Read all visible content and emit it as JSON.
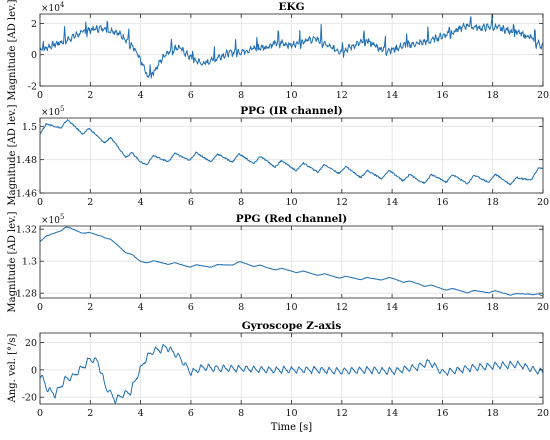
{
  "chart_data": [
    {
      "type": "line",
      "title": "EKG",
      "ylabel": "Magnitude [AD lev.]",
      "xlabel": "",
      "exponent_label": "×10^4",
      "xlim": [
        0,
        20
      ],
      "ylim": [
        -2,
        2.6
      ],
      "yticks": [
        -2,
        0,
        2
      ],
      "ytick_labels": [
        "-2",
        "0",
        "2"
      ],
      "xticks": [
        0,
        2,
        4,
        6,
        8,
        10,
        12,
        14,
        16,
        18,
        20
      ],
      "xtick_labels": [
        "0",
        "2",
        "4",
        "6",
        "8",
        "10",
        "12",
        "14",
        "16",
        "18",
        "20"
      ],
      "grid": true,
      "series": [
        {
          "color": "#1f6fb4",
          "x": [
            0,
            0.5,
            1,
            1.5,
            2,
            2.5,
            3,
            3.5,
            3.8,
            4.1,
            4.3,
            4.6,
            5,
            5.5,
            6,
            6.5,
            7,
            7.5,
            8,
            8.5,
            9,
            9.5,
            10,
            10.5,
            11,
            11.5,
            12,
            12.5,
            13,
            13.5,
            14,
            14.5,
            15,
            15.5,
            16,
            16.5,
            17,
            17.5,
            18,
            18.5,
            19,
            19.5,
            20
          ],
          "y": [
            0.3,
            0.6,
            0.9,
            1.3,
            1.6,
            1.7,
            1.5,
            0.9,
            0.2,
            -0.7,
            -1.5,
            -0.9,
            0.1,
            0.5,
            -0.2,
            -0.6,
            -0.2,
            0.1,
            0.2,
            0.4,
            0.5,
            0.8,
            0.6,
            0.9,
            1.0,
            0.5,
            0.2,
            0.6,
            0.9,
            0.4,
            0.3,
            0.6,
            0.7,
            0.9,
            1.2,
            1.5,
            1.9,
            1.7,
            1.8,
            1.6,
            1.4,
            1.1,
            0.5
          ],
          "peak_amplitude": 0.9,
          "beat_interval_s": 0.85
        }
      ]
    },
    {
      "type": "line",
      "title": "PPG (IR channel)",
      "ylabel": "Magnitude [AD lev.]",
      "xlabel": "",
      "exponent_label": "×10^5",
      "xlim": [
        0,
        20
      ],
      "ylim": [
        1.46,
        1.505
      ],
      "yticks": [
        1.46,
        1.48,
        1.5
      ],
      "ytick_labels": [
        "1.46",
        "1.48",
        "1.5"
      ],
      "xticks": [
        0,
        2,
        4,
        6,
        8,
        10,
        12,
        14,
        16,
        18,
        20
      ],
      "xtick_labels": [
        "0",
        "2",
        "4",
        "6",
        "8",
        "10",
        "12",
        "14",
        "16",
        "18",
        "20"
      ],
      "grid": true,
      "series": [
        {
          "color": "#1f6fb4",
          "x": [
            0,
            0.5,
            1,
            1.5,
            2,
            2.5,
            3,
            3.5,
            4,
            5,
            6,
            7,
            8,
            9,
            10,
            11,
            12,
            13,
            14,
            15,
            16,
            17,
            18,
            19,
            19.5,
            20
          ],
          "y": [
            1.498,
            1.5,
            1.502,
            1.499,
            1.496,
            1.493,
            1.489,
            1.483,
            1.479,
            1.481,
            1.482,
            1.481,
            1.481,
            1.479,
            1.476,
            1.475,
            1.474,
            1.471,
            1.471,
            1.468,
            1.469,
            1.468,
            1.469,
            1.467,
            1.47,
            1.474
          ],
          "oscillation_amplitude": 0.0025,
          "beat_interval_s": 0.85
        }
      ]
    },
    {
      "type": "line",
      "title": "PPG (Red channel)",
      "ylabel": "Magnitude [AD lev.]",
      "xlabel": "",
      "exponent_label": "×10^5",
      "xlim": [
        0,
        20
      ],
      "ylim": [
        1.277,
        1.322
      ],
      "yticks": [
        1.28,
        1.3,
        1.32
      ],
      "ytick_labels": [
        "1.28",
        "1.3",
        "1.32"
      ],
      "xticks": [
        0,
        2,
        4,
        6,
        8,
        10,
        12,
        14,
        16,
        18,
        20
      ],
      "xtick_labels": [
        "0",
        "2",
        "4",
        "6",
        "8",
        "10",
        "12",
        "14",
        "16",
        "18",
        "20"
      ],
      "grid": true,
      "series": [
        {
          "color": "#1f6fb4",
          "x": [
            0,
            0.5,
            1,
            1.5,
            2,
            2.5,
            3,
            3.5,
            4,
            5,
            6,
            7,
            8,
            9,
            10,
            11,
            12,
            13,
            14,
            15,
            16,
            17,
            18,
            19,
            19.5,
            20
          ],
          "y": [
            1.313,
            1.317,
            1.321,
            1.319,
            1.317,
            1.316,
            1.311,
            1.305,
            1.3,
            1.299,
            1.297,
            1.297,
            1.299,
            1.296,
            1.294,
            1.292,
            1.29,
            1.289,
            1.289,
            1.286,
            1.283,
            1.281,
            1.281,
            1.279,
            1.28,
            1.278
          ],
          "oscillation_amplitude": 0.0008,
          "beat_interval_s": 0.85
        }
      ]
    },
    {
      "type": "line",
      "title": "Gyroscope Z-axis",
      "ylabel": "Ang. vel. [°/s]",
      "xlabel": "Time [s]",
      "exponent_label": "",
      "xlim": [
        0,
        20
      ],
      "ylim": [
        -25,
        27
      ],
      "yticks": [
        -20,
        0,
        20
      ],
      "ytick_labels": [
        "-20",
        "0",
        "20"
      ],
      "xticks": [
        0,
        2,
        4,
        6,
        8,
        10,
        12,
        14,
        16,
        18,
        20
      ],
      "xtick_labels": [
        "0",
        "2",
        "4",
        "6",
        "8",
        "10",
        "12",
        "14",
        "16",
        "18",
        "20"
      ],
      "grid": true,
      "series": [
        {
          "color": "#1f6fb4",
          "x": [
            0,
            0.3,
            0.6,
            1,
            1.3,
            1.7,
            2,
            2.3,
            2.6,
            3,
            3.3,
            3.6,
            3.9,
            4.2,
            4.5,
            4.8,
            5,
            5.3,
            5.6,
            6,
            6.5,
            7,
            8,
            9,
            10,
            11,
            12,
            13,
            14,
            15,
            15.5,
            16,
            17,
            18,
            19,
            20
          ],
          "y": [
            -3,
            -14,
            -18,
            -7,
            -5,
            2,
            8,
            6,
            -12,
            -22,
            -18,
            -16,
            -3,
            8,
            14,
            15,
            17,
            13,
            8,
            -2,
            2,
            1,
            1,
            0,
            0,
            0,
            -1,
            0,
            -1,
            2,
            6,
            -2,
            1,
            3,
            4,
            -2
          ],
          "oscillation_amplitude": 2.5,
          "beat_interval_s": 0.3
        }
      ]
    }
  ]
}
